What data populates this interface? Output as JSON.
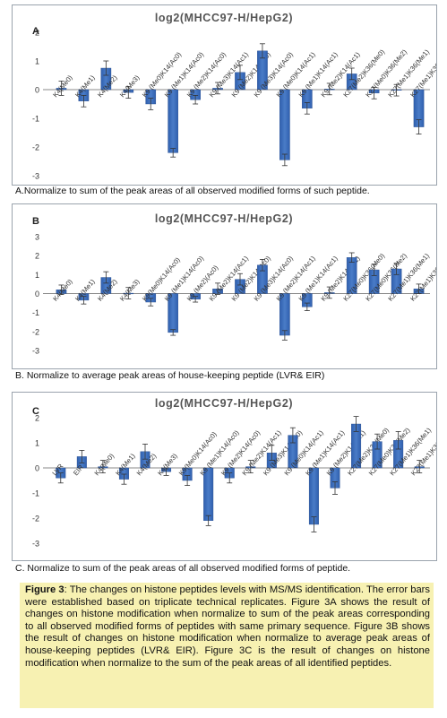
{
  "chart_data": [
    {
      "type": "bar",
      "panel_letter": "A",
      "title": "log2(MHCC97-H/HepG2)",
      "ylim": [
        -3,
        2
      ],
      "yticks": [
        -3,
        -2,
        -1,
        0,
        1,
        2
      ],
      "grid": false,
      "bar_color": "#4a7cc7",
      "categories": [
        "K4(Me0)",
        "K4(Me1)",
        "K4(Me2)",
        "K4(Me3)",
        "K9 (Me0)K14(Ac0)",
        "K9 (Me1)K14(Ac0)",
        "K9 (Me2)K14(Ac0)",
        "K9 (Me3)K14(Ac1)",
        "K9 (Me2)K14(Ac0)",
        "K9 (Me3)K14(Ac0)",
        "K9 (Me0)K14(Ac1)",
        "K9 (Me1)K14(Ac1)",
        "K9 (Me2)K14(Ac1)",
        "K27(Me2)K36(Me0)",
        "K27(Me0)K36(Me2)",
        "K27(Me1)K36(Me1)",
        "K27(Me1)K36(Me2)"
      ],
      "values": [
        0.05,
        -0.4,
        0.75,
        -0.1,
        -0.5,
        -2.2,
        -0.35,
        0.05,
        0.6,
        1.35,
        -2.45,
        -0.65,
        0.02,
        0.55,
        -0.12,
        -0.02,
        -1.3
      ],
      "errors": [
        0.25,
        0.2,
        0.25,
        0.2,
        0.2,
        0.15,
        0.15,
        0.2,
        0.25,
        0.25,
        0.2,
        0.2,
        0.2,
        0.2,
        0.2,
        0.2,
        0.25
      ]
    },
    {
      "type": "bar",
      "panel_letter": "B",
      "title": "log2(MHCC97-H/HepG2)",
      "ylim": [
        -3,
        3
      ],
      "yticks": [
        -3,
        -2,
        -1,
        0,
        1,
        2,
        3
      ],
      "grid": false,
      "bar_color": "#4a7cc7",
      "categories": [
        "K4(Me0)",
        "K4(Me1)",
        "K4(Me2)",
        "K4(Me3)",
        "K9(Me0)K14(Ac0)",
        "K9 (Me1)K14(Ac0)",
        "K9 (Me2)(Ac0)",
        "K9 (Me2)K14(Ac1)",
        "K9 (Me2)K14(Ac0)",
        "K9 (Me3)K14(Ac0)",
        "K9 (Me2)K14(Ac1)",
        "K9 (Me1)K14(Ac1)",
        "K9 (Me2)K14(Ac1)",
        "K27(Me0)K36(Me0)",
        "K27(Me0)K36(Me2)",
        "K27(Me1)K36(Me1)",
        "K27(Me1)K36(Me2)"
      ],
      "values": [
        0.2,
        -0.35,
        0.85,
        0.02,
        -0.45,
        -2.05,
        -0.3,
        0.25,
        0.75,
        1.5,
        -2.2,
        -0.7,
        0.05,
        1.9,
        1.25,
        1.3,
        0.25
      ],
      "errors": [
        0.25,
        0.2,
        0.3,
        0.3,
        0.2,
        0.15,
        0.15,
        0.3,
        0.3,
        0.3,
        0.25,
        0.2,
        0.3,
        0.25,
        0.3,
        0.3,
        0.25
      ]
    },
    {
      "type": "bar",
      "panel_letter": "C",
      "title": "log2(MHCC97-H/HepG2)",
      "ylim": [
        -3,
        2
      ],
      "yticks": [
        -3,
        -2,
        -1,
        0,
        1,
        2
      ],
      "grid": false,
      "bar_color": "#4a7cc7",
      "categories": [
        "LVR",
        "EIR",
        "K4(Me0)",
        "K4(Me1)",
        "K4(Me2)",
        "K4(Me3)",
        "K9(Me0)K14(Ac0)",
        "K9 (Me1)K14(Ac0)",
        "K9 (Me2)K14(Ac0)",
        "K9 (Me2)K14(Ac1)",
        "K9 (Me3)K14(Ac0)",
        "K9 (Me0)K14(Ac1)",
        "K9 (Me1)K14(Ac1)",
        "K9 (Me2)K14(Ac1)",
        "K27(Me2)K36(Me0)",
        "K27(Me0)K36(Me2)",
        "K27(Me1)K36(Me1)",
        "K27(Me1)K36(Me2)"
      ],
      "values": [
        -0.4,
        0.45,
        0.05,
        -0.45,
        0.65,
        -0.15,
        -0.5,
        -2.1,
        -0.4,
        0.05,
        0.6,
        1.3,
        -2.25,
        -0.8,
        1.75,
        1.05,
        1.1,
        0.05
      ],
      "errors": [
        0.2,
        0.25,
        0.25,
        0.2,
        0.3,
        0.15,
        0.2,
        0.2,
        0.2,
        0.25,
        0.3,
        0.3,
        0.3,
        0.25,
        0.3,
        0.3,
        0.35,
        0.25
      ]
    }
  ],
  "captions": {
    "a": "A.Normalize to sum of the peak areas of all observed modified forms of such peptide.",
    "b": "B. Normalize to average peak areas of house-keeping peptide (LVR& EIR)",
    "c": "C. Normalize to sum of the peak areas of all observed modified forms of peptide."
  },
  "figure_caption": {
    "label": "Figure",
    "number": "3",
    "text": ": The changes on histone peptides levels with MS/MS identification. The error bars were established based on triplicate technical replicates. Figure 3A shows the result of changes on histone modification when normalize to sum of the peak areas corresponding to all observed modified forms of peptides with same primary sequence. Figure 3B shows the result of changes on histone modification when normalize to average peak areas of house-keeping peptides (LVR& EIR). Figure 3C is the result of changes on histone modification when normalize to the sum of the peak areas of all identified peptides."
  }
}
